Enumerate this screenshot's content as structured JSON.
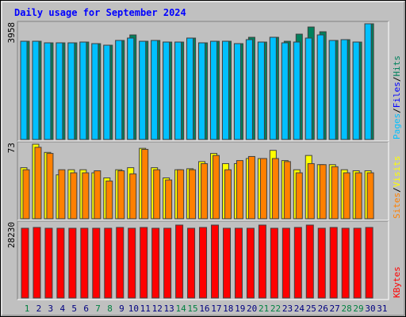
{
  "chart_data": {
    "type": "bar",
    "title": "Daily usage for September 2024",
    "categories": [
      "1",
      "2",
      "3",
      "4",
      "5",
      "6",
      "7",
      "8",
      "9",
      "10",
      "11",
      "12",
      "13",
      "14",
      "15",
      "16",
      "17",
      "18",
      "19",
      "20",
      "21",
      "22",
      "23",
      "24",
      "25",
      "26",
      "27",
      "28",
      "29",
      "30",
      "31"
    ],
    "category_colors": [
      "#008040",
      "#000080",
      "#000080",
      "#000080",
      "#000080",
      "#000080",
      "#008040",
      "#008040",
      "#000080",
      "#000080",
      "#000080",
      "#000080",
      "#000080",
      "#008040",
      "#008040",
      "#000080",
      "#000080",
      "#000080",
      "#000080",
      "#000080",
      "#008040",
      "#008040",
      "#000080",
      "#000080",
      "#000080",
      "#000080",
      "#000080",
      "#008040",
      "#008040",
      "#000080",
      "#000080"
    ],
    "legend_separator": "/",
    "panels": [
      {
        "ylim": [
          0,
          3958
        ],
        "yticks": [
          3958
        ],
        "series": [
          {
            "name": "Hits",
            "color": "#00805c",
            "values": [
              3360,
              3360,
              3306,
              3306,
              3306,
              3333,
              3279,
              3225,
              3388,
              3577,
              3360,
              3388,
              3333,
              3333,
              3469,
              3306,
              3360,
              3360,
              3279,
              3496,
              3333,
              3496,
              3360,
              3604,
              3848,
              3686,
              3388,
              3415,
              3333,
              3958,
              null
            ]
          },
          {
            "name": "Files",
            "color": "#0000ff",
            "values": [
              3360,
              3360,
              3306,
              3306,
              3306,
              3333,
              3279,
              3225,
              3388,
              3469,
              3360,
              3388,
              3333,
              3333,
              3469,
              3306,
              3360,
              3360,
              3279,
              3415,
              3333,
              3496,
              3306,
              3333,
              3469,
              3577,
              3388,
              3415,
              3333,
              3958,
              null
            ]
          },
          {
            "name": "Pages",
            "color": "#00c0ff",
            "values": [
              3360,
              3360,
              3306,
              3306,
              3306,
              3333,
              3279,
              3225,
              3388,
              3469,
              3360,
              3388,
              3333,
              3333,
              3469,
              3306,
              3360,
              3360,
              3279,
              3415,
              3333,
              3496,
              3306,
              3333,
              3469,
              3577,
              3388,
              3415,
              3333,
              3958,
              null
            ]
          }
        ]
      },
      {
        "ylim": [
          0,
          73
        ],
        "yticks": [
          73
        ],
        "series": [
          {
            "name": "Visits",
            "color": "#ffff00",
            "values": [
              50,
              73,
              65,
              43,
              48,
              48,
              45,
              40,
              48,
              50,
              69,
              50,
              40,
              48,
              49,
              56,
              64,
              54,
              54,
              59,
              59,
              67,
              57,
              48,
              62,
              53,
              53,
              48,
              47,
              47,
              null
            ]
          },
          {
            "name": "Sites",
            "color": "#ff8000",
            "values": [
              48,
              70,
              64,
              48,
              45,
              45,
              47,
              37,
              47,
              44,
              68,
              48,
              38,
              48,
              48,
              54,
              62,
              48,
              57,
              61,
              59,
              59,
              56,
              45,
              54,
              53,
              51,
              45,
              45,
              45,
              null
            ]
          }
        ]
      },
      {
        "ylim": [
          0,
          28230
        ],
        "yticks": [
          28230
        ],
        "series": [
          {
            "name": "KBytes",
            "color": "#ff0000",
            "values": [
              26428,
              26729,
              26428,
              26428,
              26428,
              26428,
              26428,
              26428,
              26729,
              26428,
              26729,
              26428,
              26428,
              27630,
              26428,
              26729,
              27630,
              26428,
              26428,
              26428,
              27630,
              26428,
              26428,
              26729,
              27630,
              26428,
              26729,
              26428,
              26428,
              26729,
              null
            ]
          }
        ]
      }
    ]
  }
}
